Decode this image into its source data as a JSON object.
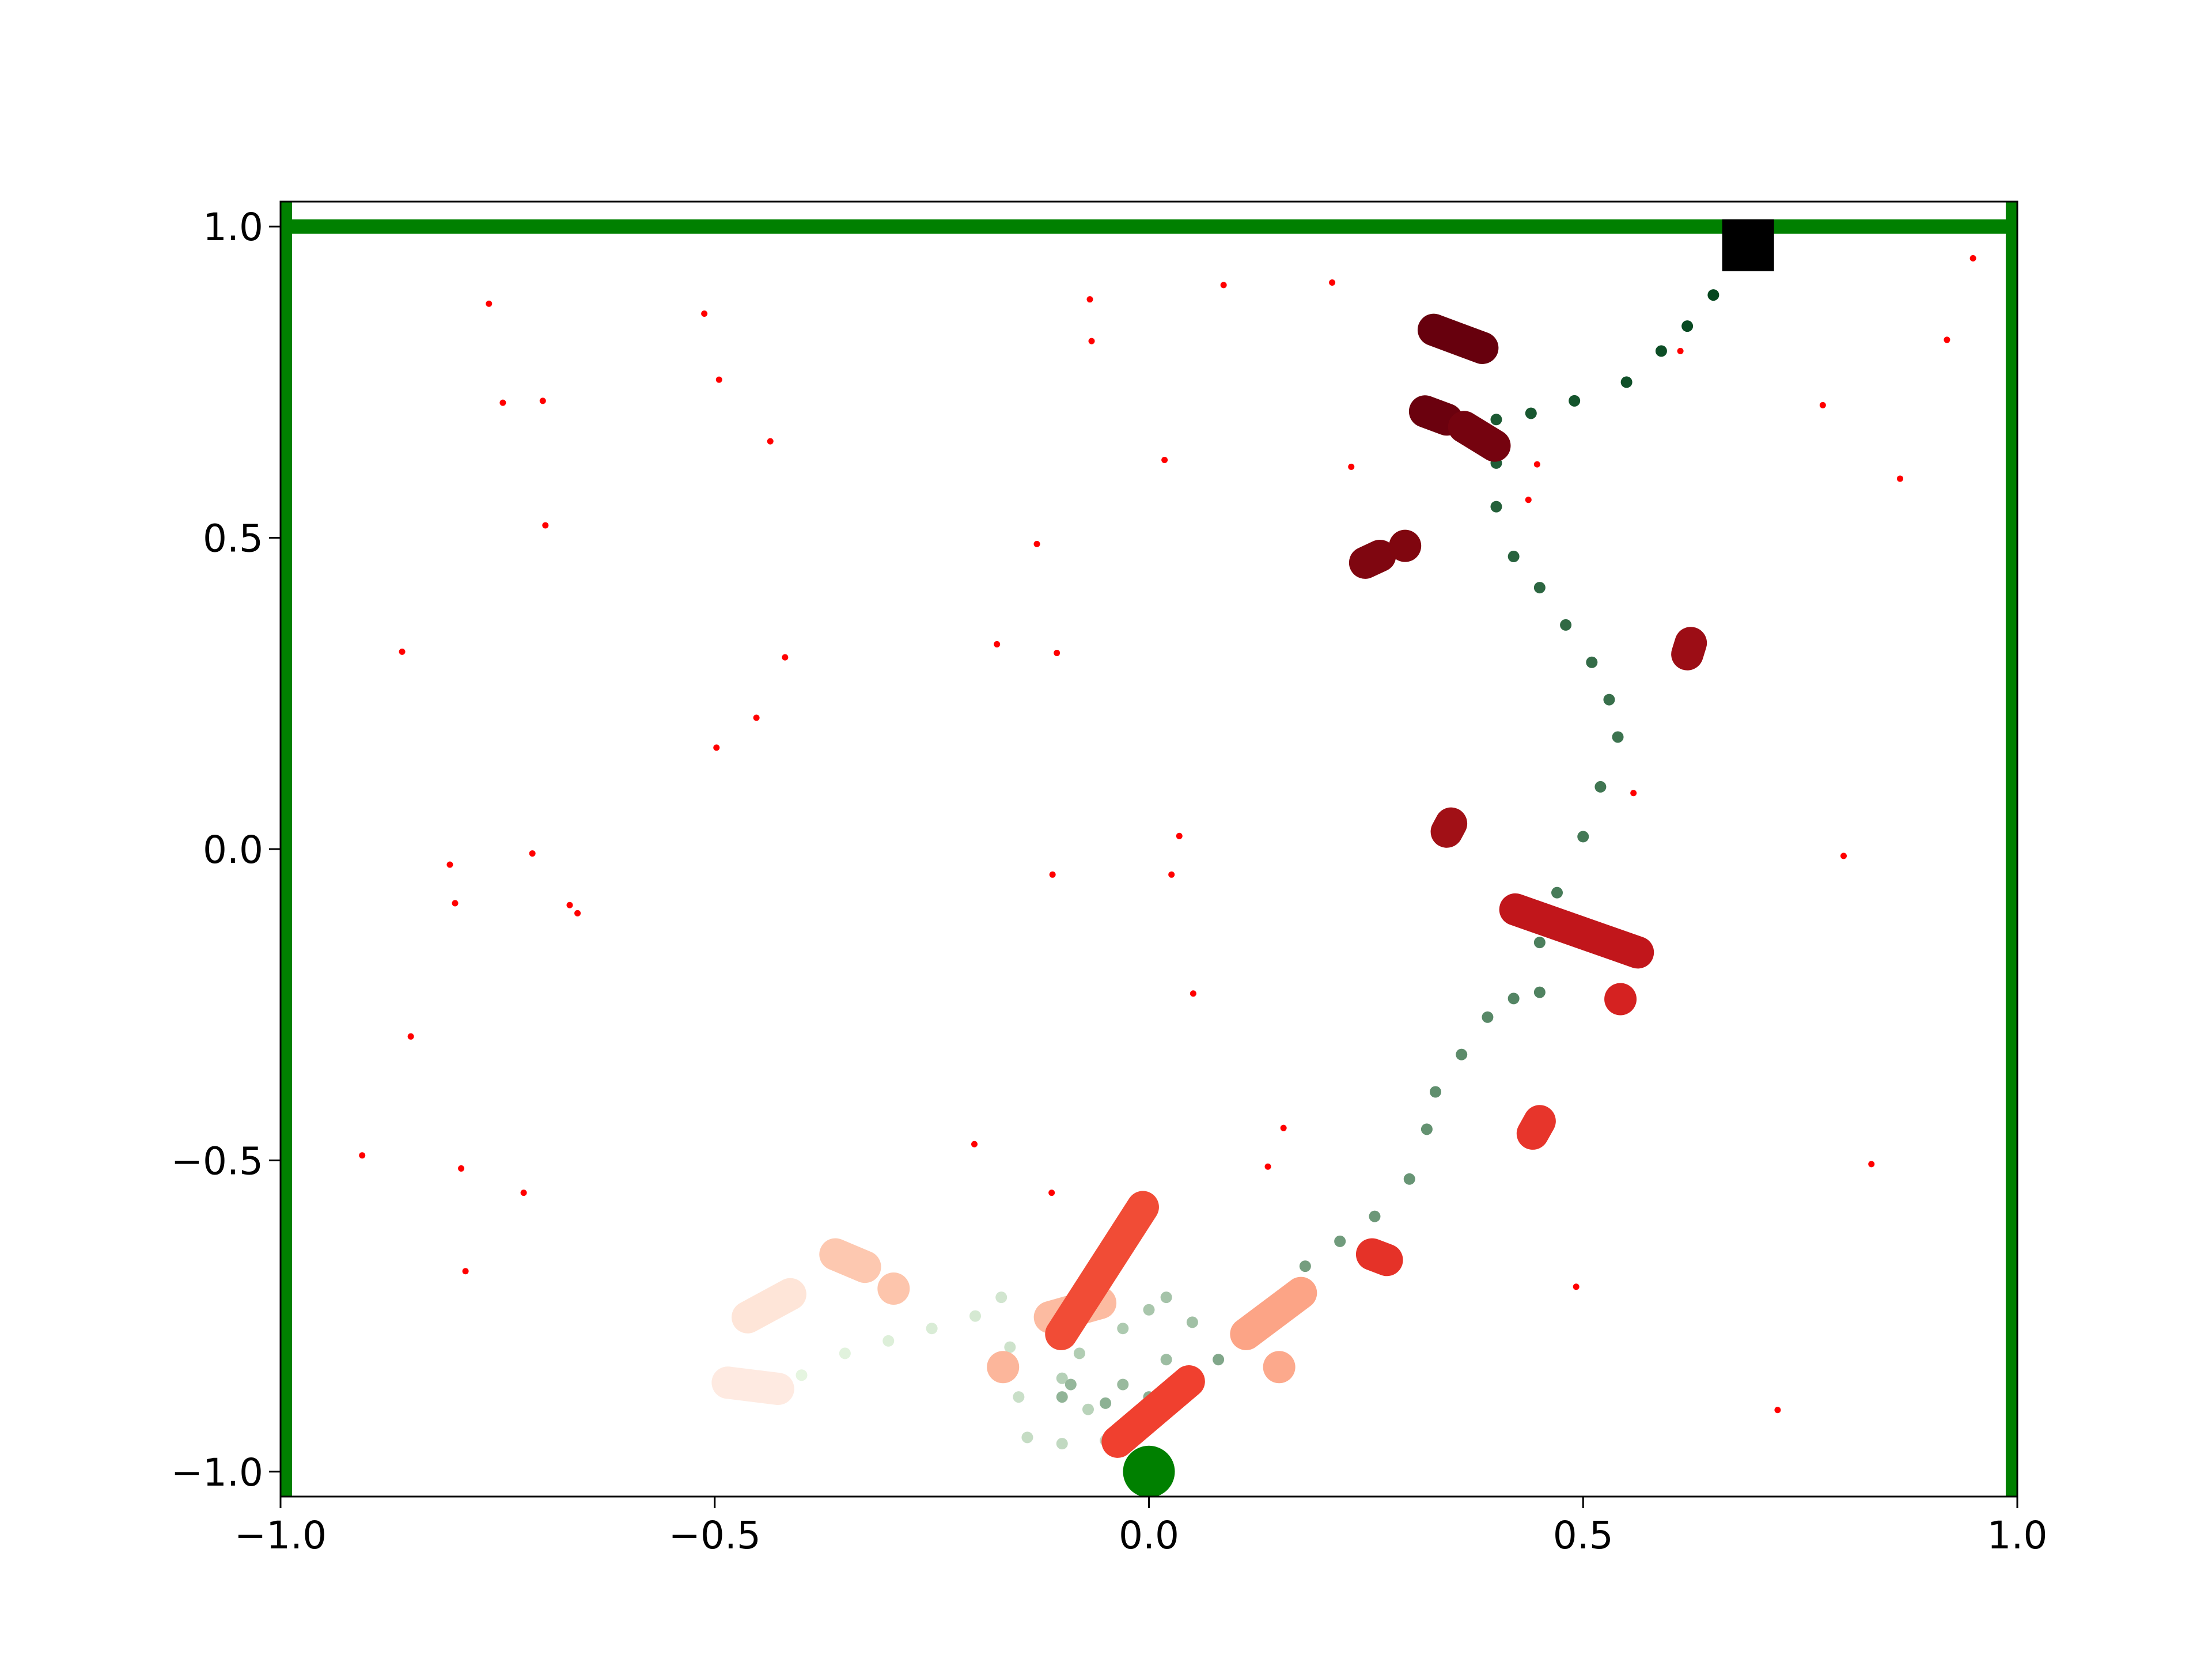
{
  "chart_data": {
    "type": "scatter",
    "xlim": [
      -1,
      1
    ],
    "ylim": [
      -1.04,
      1.04
    ],
    "xticks": [
      {
        "value": -1,
        "label": "−1.0"
      },
      {
        "value": -0.5,
        "label": "−0.5"
      },
      {
        "value": 0,
        "label": "0.0"
      },
      {
        "value": 0.5,
        "label": "0.5"
      },
      {
        "value": 1,
        "label": "1.0"
      }
    ],
    "yticks": [
      {
        "value": -1,
        "label": "−1.0"
      },
      {
        "value": -0.5,
        "label": "−0.5"
      },
      {
        "value": 0,
        "label": "0.0"
      },
      {
        "value": 0.5,
        "label": "0.5"
      },
      {
        "value": 1,
        "label": "1.0"
      }
    ],
    "walls": {
      "x": [
        -0.995,
        0.995
      ],
      "y": [
        1
      ],
      "color": "#008000"
    },
    "points": {
      "color": "#ff0000",
      "x": [
        -0.76,
        -0.744,
        -0.698,
        -0.695,
        -0.86,
        -0.512,
        -0.495,
        -0.436,
        -0.419,
        -0.452,
        -0.498,
        -0.805,
        -0.799,
        -0.71,
        -0.667,
        -0.658,
        -0.85,
        -0.906,
        -0.792,
        -0.72,
        -0.787,
        -0.068,
        -0.066,
        0.086,
        0.211,
        0.018,
        0.233,
        -0.129,
        -0.175,
        -0.106,
        0.035,
        -0.111,
        0.026,
        0.051,
        0.155,
        0.137,
        -0.201,
        -0.112,
        0.447,
        0.437,
        0.612,
        0.776,
        0.865,
        0.919,
        0.949,
        0.558,
        0.8,
        0.832,
        0.492,
        0.724
      ],
      "y": [
        0.876,
        0.717,
        0.72,
        0.52,
        0.317,
        0.86,
        0.754,
        0.655,
        0.308,
        0.211,
        0.163,
        -0.025,
        -0.087,
        -0.007,
        -0.09,
        -0.103,
        -0.301,
        -0.492,
        -0.513,
        -0.552,
        -0.678,
        0.883,
        0.816,
        0.906,
        0.91,
        0.625,
        0.614,
        0.49,
        0.329,
        0.315,
        0.021,
        -0.041,
        -0.041,
        -0.232,
        -0.448,
        -0.51,
        -0.474,
        -0.552,
        0.618,
        0.561,
        0.8,
        0.713,
        0.595,
        0.818,
        0.949,
        0.09,
        -0.011,
        -0.506,
        -0.703,
        -0.901
      ]
    },
    "trajectory": {
      "colors": [
        "#e5f5e0",
        "#00441b"
      ],
      "x": [
        -0.4,
        -0.35,
        -0.3,
        -0.25,
        -0.2,
        -0.17,
        -0.16,
        -0.15,
        -0.14,
        -0.1,
        -0.05,
        -0.07,
        -0.1,
        -0.08,
        -0.03,
        0.0,
        0.02,
        0.05,
        0.02,
        -0.03,
        -0.09,
        -0.1,
        -0.05,
        0.0,
        0.04,
        0.08,
        0.12,
        0.15,
        0.18,
        0.22,
        0.26,
        0.3,
        0.32,
        0.33,
        0.36,
        0.39,
        0.42,
        0.45,
        0.45,
        0.47,
        0.5,
        0.52,
        0.54,
        0.53,
        0.51,
        0.48,
        0.45,
        0.42,
        0.4,
        0.4,
        0.4,
        0.44,
        0.49,
        0.55,
        0.59,
        0.62,
        0.65,
        0.69
      ],
      "y": [
        -0.845,
        -0.81,
        -0.79,
        -0.77,
        -0.75,
        -0.72,
        -0.8,
        -0.88,
        -0.945,
        -0.955,
        -0.95,
        -0.9,
        -0.85,
        -0.81,
        -0.77,
        -0.74,
        -0.72,
        -0.76,
        -0.82,
        -0.86,
        -0.86,
        -0.88,
        -0.89,
        -0.88,
        -0.86,
        -0.82,
        -0.78,
        -0.72,
        -0.67,
        -0.63,
        -0.59,
        -0.53,
        -0.45,
        -0.39,
        -0.33,
        -0.27,
        -0.24,
        -0.23,
        -0.15,
        -0.07,
        0.02,
        0.1,
        0.18,
        0.24,
        0.3,
        0.36,
        0.42,
        0.47,
        0.55,
        0.62,
        0.69,
        0.7,
        0.72,
        0.75,
        0.8,
        0.84,
        0.89,
        0.95
      ]
    },
    "obstacles": [
      {
        "x": [
          0.328,
          0.384
        ],
        "y": [
          0.834,
          0.805
        ],
        "color": "#67000d"
      },
      {
        "x": [
          0.318,
          0.343
        ],
        "y": [
          0.703,
          0.69
        ],
        "color": "#6b010e"
      },
      {
        "x": [
          0.363,
          0.398
        ],
        "y": [
          0.678,
          0.648
        ],
        "color": "#75030f"
      },
      {
        "x": [
          0.249,
          0.266
        ],
        "y": [
          0.46,
          0.471
        ],
        "color": "#7f0610"
      },
      {
        "x": [
          0.295
        ],
        "y": [
          0.487
        ],
        "color": "#80060f"
      },
      {
        "x": [
          0.624,
          0.62
        ],
        "y": [
          0.331,
          0.313
        ],
        "color": "#9c0d15"
      },
      {
        "x": [
          0.348,
          0.343
        ],
        "y": [
          0.041,
          0.028
        ],
        "color": "#a11016"
      },
      {
        "x": [
          0.422,
          0.563
        ],
        "y": [
          -0.097,
          -0.166
        ],
        "color": "#c1161b"
      },
      {
        "x": [
          0.543
        ],
        "y": [
          -0.241
        ],
        "color": "#d52221"
      },
      {
        "x": [
          0.45,
          0.442
        ],
        "y": [
          -0.437,
          -0.457
        ],
        "color": "#e7352b"
      },
      {
        "x": [
          0.257,
          0.274
        ],
        "y": [
          -0.651,
          -0.66
        ],
        "color": "#e53228"
      },
      {
        "x": [
          -0.056,
          -0.114
        ],
        "y": [
          -0.729,
          -0.752
        ],
        "color": "#fcbba1"
      },
      {
        "x": [
          -0.007,
          -0.101
        ],
        "y": [
          -0.575,
          -0.779
        ],
        "color": "#f14c36"
      },
      {
        "x": [
          0.046,
          -0.036
        ],
        "y": [
          -0.855,
          -0.952
        ],
        "color": "#f0402f"
      },
      {
        "x": [
          -0.361,
          -0.327
        ],
        "y": [
          -0.651,
          -0.671
        ],
        "color": "#fdc8b0"
      },
      {
        "x": [
          -0.294
        ],
        "y": [
          -0.706
        ],
        "color": "#fdc5ac"
      },
      {
        "x": [
          -0.413,
          -0.462
        ],
        "y": [
          -0.715,
          -0.752
        ],
        "color": "#fee5d8"
      },
      {
        "x": [
          -0.485,
          -0.427
        ],
        "y": [
          -0.857,
          -0.867
        ],
        "color": "#feeae1"
      },
      {
        "x": [
          -0.168
        ],
        "y": [
          -0.832
        ],
        "color": "#fcb69b"
      },
      {
        "x": [
          0.112,
          0.175
        ],
        "y": [
          -0.779,
          -0.713
        ],
        "color": "#fca486"
      },
      {
        "x": [
          0.15
        ],
        "y": [
          -0.832
        ],
        "color": "#fca98c"
      }
    ],
    "start": {
      "x": 0,
      "y": -1,
      "color": "#008000"
    },
    "goal": {
      "x": 0.69,
      "y": 0.97,
      "color": "#000000"
    }
  }
}
